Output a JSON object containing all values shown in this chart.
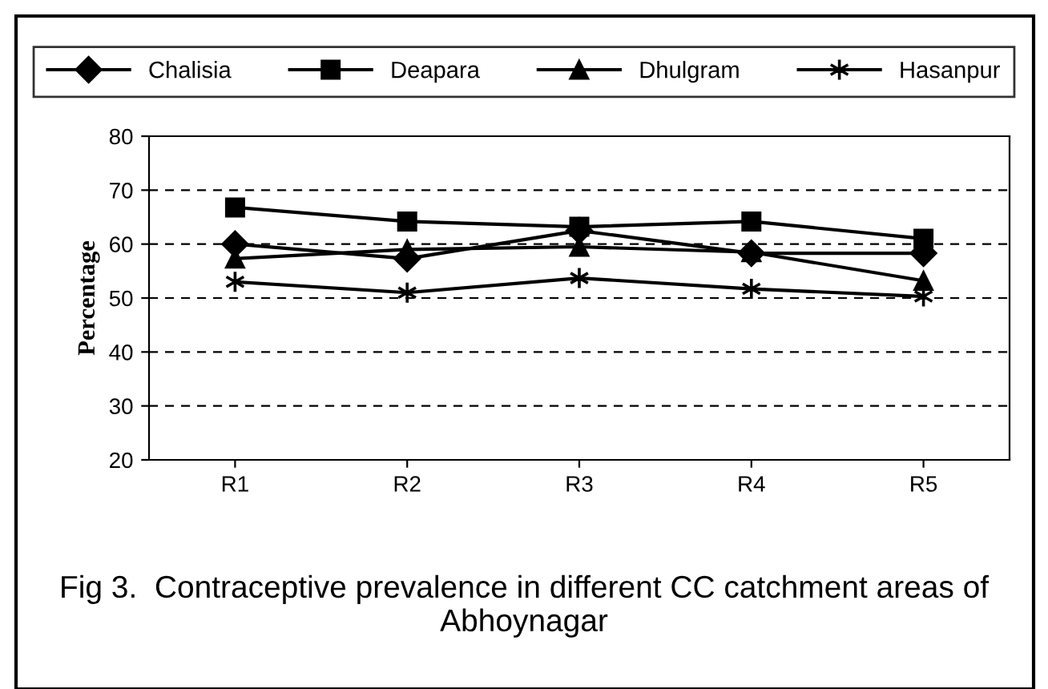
{
  "chart_data": {
    "type": "line",
    "title": "Fig 3.  Contraceptive prevalence in different CC catchment areas of Abhoynagar",
    "ylabel": "Percentage",
    "categories": [
      "R1",
      "R2",
      "R3",
      "R4",
      "R5"
    ],
    "series": [
      {
        "name": "Chalisia",
        "color": "#000000",
        "marker": "diamond",
        "values": [
          60,
          57.3,
          62.5,
          58.3,
          58.3
        ]
      },
      {
        "name": "Deapara",
        "color": "#000000",
        "marker": "square",
        "values": [
          66.8,
          64.2,
          63.2,
          64.2,
          61
        ]
      },
      {
        "name": "Dhulgram",
        "color": "#000000",
        "marker": "triangle",
        "values": [
          57.3,
          59,
          59.5,
          58.5,
          53.2
        ]
      },
      {
        "name": "Hasanpur",
        "color": "#000000",
        "marker": "cross",
        "values": [
          53,
          51,
          53.7,
          51.7,
          50.3
        ]
      }
    ],
    "ylim": [
      20,
      80
    ],
    "yticks": [
      20,
      30,
      40,
      50,
      60,
      70,
      80
    ],
    "grid": "y",
    "legend": "top",
    "line_style": "solid"
  }
}
